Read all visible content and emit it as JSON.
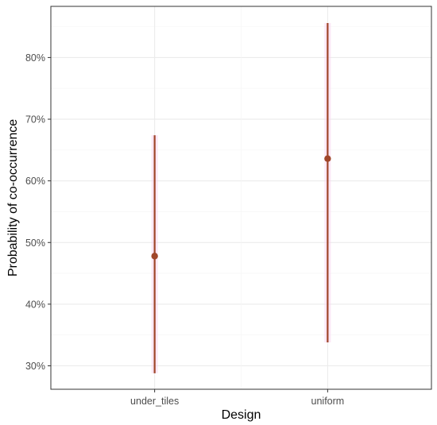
{
  "chart_data": {
    "type": "pointrange",
    "xlabel": "Design",
    "ylabel": "Probability of co-occurrence",
    "categories": [
      "under_tiles",
      "uniform"
    ],
    "series": [
      {
        "points": [
          {
            "category": "under_tiles",
            "estimate": 0.478,
            "lower": 0.288,
            "upper": 0.674
          },
          {
            "category": "uniform",
            "estimate": 0.636,
            "lower": 0.338,
            "upper": 0.856
          }
        ]
      }
    ],
    "y_ticks": [
      0.3,
      0.4,
      0.5,
      0.6,
      0.7,
      0.8
    ],
    "y_tick_labels": [
      "30%",
      "40%",
      "50%",
      "60%",
      "70%",
      "80%"
    ],
    "ylim": [
      0.262,
      0.883
    ],
    "grid": true,
    "theme": "bw",
    "colors": {
      "point": "#a0462a",
      "line": "#a0462a",
      "grid_major": "#ebebeb",
      "grid_minor": "#f5f5f5",
      "panel_border": "#333333",
      "halo": "#f7d6ef"
    }
  }
}
